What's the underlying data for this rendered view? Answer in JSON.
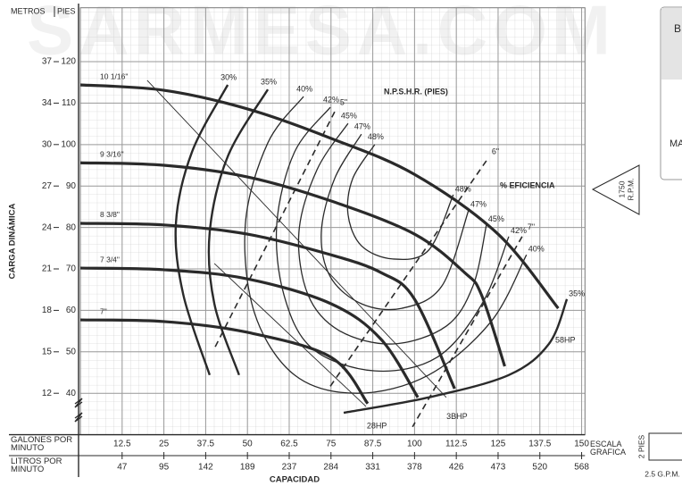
{
  "chart_data": {
    "type": "line",
    "xlim": [
      0,
      151
    ],
    "ylim": [
      30,
      133
    ],
    "xticks": [
      12.5,
      25,
      37.5,
      50,
      62.5,
      75,
      87.5,
      100,
      112.5,
      125,
      137.5,
      150
    ],
    "x2_labels": [
      "47",
      "95",
      "142",
      "189",
      "237",
      "284",
      "331",
      "378",
      "426",
      "473",
      "520",
      "568"
    ],
    "yticks": [
      40,
      50,
      60,
      70,
      80,
      90,
      100,
      110,
      120
    ],
    "y2_labels": [
      "12",
      "15",
      "18",
      "21",
      "24",
      "27",
      "30",
      "34",
      "37"
    ],
    "y2_unit": "METROS",
    "y_unit": "PIES",
    "ylabel": "CARGA DINÁMICA",
    "xlabel": "CAPACIDAD",
    "x_row_label": "GALONES POR MINUTO",
    "x2_row_label": "LITROS POR MINUTO",
    "grid": true,
    "minor_grid": {
      "x": 2.5,
      "y": 2
    },
    "color": "#2a2a2a",
    "impeller_curves": [
      {
        "name": "10 1/16\"",
        "x": [
          0,
          25,
          50,
          75,
          100,
          125,
          143
        ],
        "values": [
          114.4,
          113.1,
          108.6,
          101.5,
          92.8,
          78.4,
          60.5
        ]
      },
      {
        "name": "9 3/16\"",
        "x": [
          0,
          25,
          50,
          75,
          100,
          115,
          120,
          127
        ],
        "values": [
          95.6,
          95,
          92.2,
          86.4,
          78.4,
          69.1,
          63.8,
          46.5
        ]
      },
      {
        "name": "8 3/8\"",
        "x": [
          0,
          25,
          50,
          75,
          90,
          100,
          112
        ],
        "values": [
          81,
          80.6,
          78.4,
          73.4,
          69.1,
          62.7,
          41.1
        ]
      },
      {
        "name": "7 3/4\"",
        "x": [
          0,
          25,
          50,
          75,
          90,
          101
        ],
        "values": [
          70.2,
          69.8,
          67.6,
          61.6,
          53,
          39
        ]
      },
      {
        "name": "7\"",
        "x": [
          0,
          25,
          50,
          75,
          86
        ],
        "values": [
          57.7,
          57.3,
          54.7,
          48.7,
          37.5
        ]
      }
    ],
    "efficiency_curves": [
      {
        "name": "30%",
        "x": [
          44.1,
          33.4,
          28.6,
          30.8,
          38.7
        ],
        "values": [
          114.4,
          98.2,
          81,
          63.8,
          44.4
        ]
      },
      {
        "name": "35%",
        "x": [
          56.1,
          44.1,
          38.7,
          40.1,
          47.5,
          null,
          78.8,
          104.2,
          128.2,
          140.2,
          145.6
        ],
        "values": [
          113.3,
          97.1,
          78.8,
          61.6,
          44.4,
          null,
          35.3,
          39,
          44.4,
          51.9,
          62.7
        ]
      },
      {
        "name": "40%",
        "x": [
          66.8,
          56.1,
          49.4,
          52.1,
          64.1,
          82.8,
          104.2,
          122.9,
          133.5
        ],
        "values": [
          111.6,
          100.4,
          81,
          59.4,
          44.4,
          40,
          44.4,
          57.3,
          73.4
        ]
      },
      {
        "name": "42%",
        "x": [
          74.8,
          64.1,
          58.8,
          60.9,
          69.4,
          88.1,
          106.8,
          120.2,
          128.2
        ],
        "values": [
          109,
          98.2,
          81,
          63.8,
          50.8,
          45.4,
          48.7,
          61.6,
          77.8
        ]
      },
      {
        "name": "45%",
        "x": [
          80.1,
          70.8,
          65.4,
          68.1,
          77.5,
          93.5,
          109.5,
          117.5,
          121.5
        ],
        "values": [
          105.1,
          93.9,
          78.8,
          63.8,
          55.1,
          51.9,
          56.2,
          65.9,
          80.6
        ]
      },
      {
        "name": "47%",
        "x": [
          84.1,
          76.1,
          72.1,
          74.8,
          84.1,
          96.2,
          108.2,
          116.2
        ],
        "values": [
          102.5,
          91.8,
          78.8,
          68.1,
          61.6,
          60.5,
          65.9,
          84.2
        ]
      },
      {
        "name": "48%",
        "x": [
          88.1,
          81.5,
          80.1,
          84.1,
          93.5,
          104.2,
          111.6
        ],
        "values": [
          100,
          91.8,
          83.1,
          75.6,
          72.4,
          74.5,
          87.9
        ]
      }
    ],
    "bhp_lines": [
      {
        "name": "28HP",
        "x": [
          40.1,
          85.5
        ],
        "values": [
          71.3,
          36.8
        ]
      },
      {
        "name": "3BHP",
        "x": [
          20,
          109.5
        ],
        "values": [
          115.5,
          39
        ]
      }
    ],
    "npshr_lines": [
      {
        "name": "5\"",
        "x": [
          76.1,
          40.1
        ],
        "values": [
          107.9,
          50.8
        ]
      },
      {
        "name": "6\"",
        "x": [
          121.5,
          74.3
        ],
        "values": [
          96.1,
          41.1
        ]
      },
      {
        "name": "7\"",
        "x": [
          132.2,
          99.4
        ],
        "values": [
          77.8,
          31.9
        ]
      }
    ],
    "annotations": [
      "N.P.S.H.R. (PIES)",
      "% EFICIENCIA",
      "58HP",
      "1750",
      "R.P.M.",
      "ESCALA GRAFICA",
      "2 PIES",
      "2.5 G.P.M.",
      "SARMESA.COM",
      "B",
      "MA"
    ]
  }
}
